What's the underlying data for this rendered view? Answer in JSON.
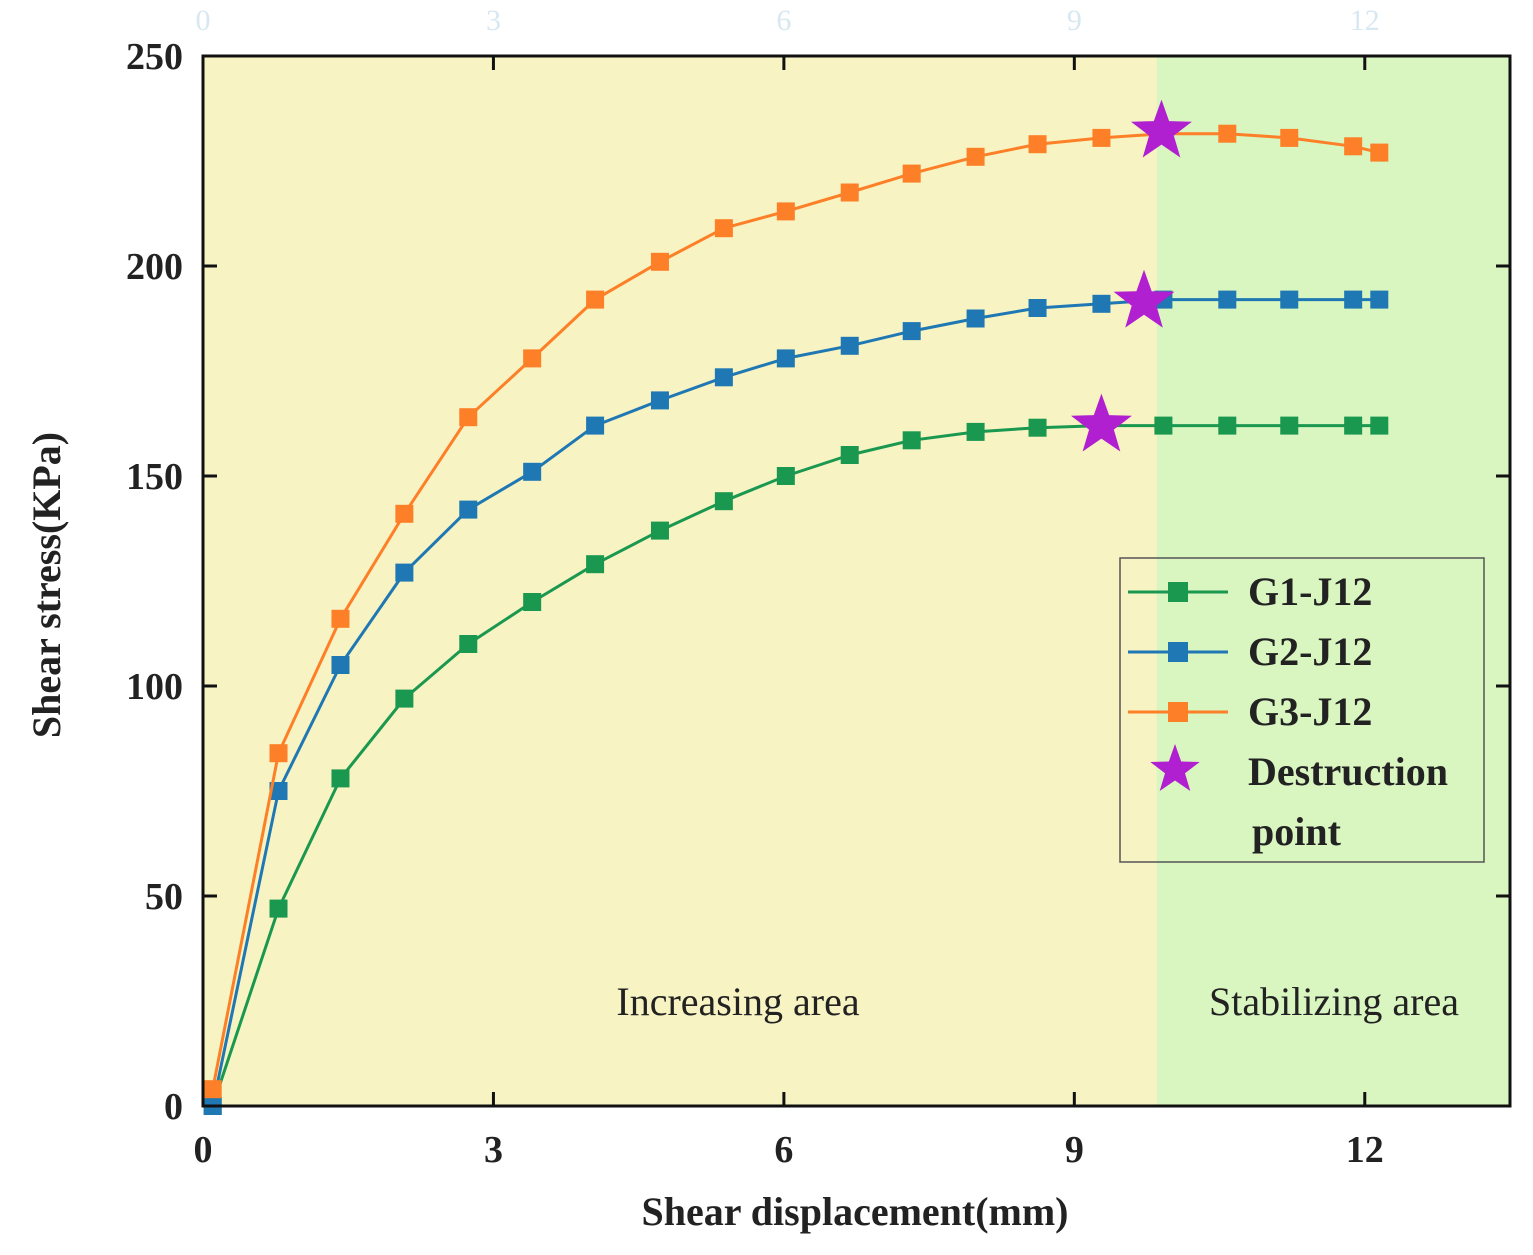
{
  "chart_data": {
    "type": "line",
    "title": "",
    "xlabel": "Shear displacement(mm)",
    "ylabel": "Shear stress(KPa)",
    "xlim": [
      0,
      13.5
    ],
    "ylim": [
      0,
      250
    ],
    "xticks": [
      0,
      3,
      6,
      9,
      12
    ],
    "yticks": [
      0,
      50,
      100,
      150,
      200,
      250
    ],
    "x_tick_labels": [
      "0",
      "3",
      "6",
      "9",
      "12"
    ],
    "y_tick_labels": [
      "0",
      "50",
      "100",
      "150",
      "200",
      "250"
    ],
    "grid": false,
    "legend_position": "right",
    "regions": [
      {
        "name": "Increasing area",
        "x_range": [
          0,
          9.85
        ],
        "color": "#f8f3c2"
      },
      {
        "name": "Stabilizing area",
        "x_range": [
          9.85,
          13.5
        ],
        "color": "#d9f5c0"
      }
    ],
    "series": [
      {
        "name": "G1-J12",
        "color": "#1a9850",
        "x": [
          0.1,
          0.78,
          1.42,
          2.08,
          2.74,
          3.4,
          4.05,
          4.72,
          5.38,
          6.02,
          6.68,
          7.32,
          7.98,
          8.62,
          9.28,
          9.92,
          10.58,
          11.22,
          11.88,
          12.15
        ],
        "y": [
          0,
          47,
          78,
          97,
          110,
          120,
          129,
          137,
          144,
          150,
          155,
          158.5,
          160.5,
          161.5,
          162,
          162,
          162,
          162,
          162,
          162
        ]
      },
      {
        "name": "G2-J12",
        "color": "#1f78b4",
        "x": [
          0.1,
          0.78,
          1.42,
          2.08,
          2.74,
          3.4,
          4.05,
          4.72,
          5.38,
          6.02,
          6.68,
          7.32,
          7.98,
          8.62,
          9.28,
          9.92,
          10.58,
          11.22,
          11.88,
          12.15
        ],
        "y": [
          0,
          75,
          105,
          127,
          142,
          151,
          162,
          168,
          173.5,
          178,
          181,
          184.5,
          187.5,
          190,
          191,
          192,
          192,
          192,
          192,
          192
        ]
      },
      {
        "name": "G3-J12",
        "color": "#fd7f27",
        "x": [
          0.1,
          0.78,
          1.42,
          2.08,
          2.74,
          3.4,
          4.05,
          4.72,
          5.38,
          6.02,
          6.68,
          7.32,
          7.98,
          8.62,
          9.28,
          9.92,
          10.58,
          11.22,
          11.88,
          12.15
        ],
        "y": [
          4,
          84,
          116,
          141,
          164,
          178,
          192,
          201,
          209,
          213,
          217.5,
          222,
          226,
          229,
          230.5,
          231.5,
          231.5,
          230.5,
          228.5,
          227
        ]
      }
    ],
    "destruction_points": {
      "name": "Destruction point",
      "color": "#b01fd0",
      "points": [
        {
          "series": "G1-J12",
          "x": 9.28,
          "y": 162
        },
        {
          "series": "G2-J12",
          "x": 9.72,
          "y": 191.5
        },
        {
          "series": "G3-J12",
          "x": 9.9,
          "y": 232
        }
      ]
    },
    "legend": [
      "G1-J12",
      "G2-J12",
      "G3-J12",
      "Destruction point"
    ],
    "legend_lines": {
      "destruction": [
        "Destruction",
        "point"
      ]
    },
    "annotations": [
      "Increasing area",
      "Stabilizing area"
    ],
    "top_axis_ticks": [
      "0",
      "3",
      "6",
      "9",
      "12"
    ]
  }
}
